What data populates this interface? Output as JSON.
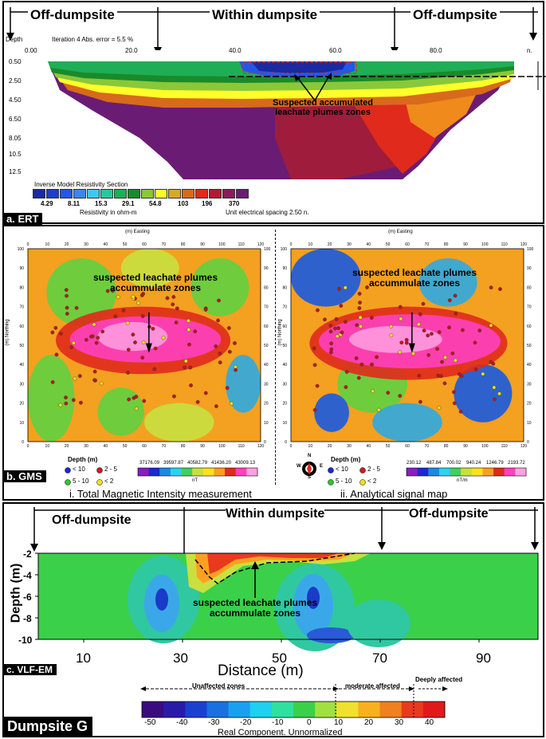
{
  "ert": {
    "zones": [
      "Off-dumpsite",
      "Within dumpsite",
      "Off-dumpsite"
    ],
    "depth_label": "Depth",
    "iteration_label": "Iteration 4  Abs. error = 5.5 %",
    "x_ticks": [
      "0.00",
      "20.0",
      "40.0",
      "60.0",
      "80.0"
    ],
    "x_end": "n.",
    "depth_ticks": [
      "0.50",
      "2.50",
      "4.50",
      "6.50",
      "8.05",
      "10.5",
      "12.5"
    ],
    "annotation": [
      "Suspected accumulated",
      "leachate plumes zones"
    ],
    "legend_title": "Inverse Model Resistivity Section",
    "legend_values": [
      "4.29",
      "8.11",
      "15.3",
      "29.1",
      "54.8",
      "103",
      "196",
      "370"
    ],
    "legend_unit": "Resistivity in ohm-m",
    "spacing": "Unit electrical spacing 2.50 n.",
    "legend_colors": [
      "#1a2aa0",
      "#1b3fcc",
      "#2456e8",
      "#3a86f0",
      "#3fc8f0",
      "#28c89c",
      "#1fae55",
      "#1a8a2a",
      "#8ac83a",
      "#ffff2a",
      "#d8a82a",
      "#d86a1c",
      "#e02a1c",
      "#b01c30",
      "#8a1c5a",
      "#6a1c74"
    ],
    "label": "a. ERT"
  },
  "gms": {
    "label": "b. GMS",
    "map1": {
      "title_axis": "(m) Easting",
      "y_axis": "(m) Northing",
      "annotation": [
        "suspected leachate plumes",
        "accummulate zones"
      ],
      "caption": "i. Total Magnetic Intensity measurement",
      "unit": "nT",
      "scale_values": [
        "37176.09",
        "39597.87",
        "40582.79",
        "41436.20",
        "43009.13"
      ]
    },
    "map2": {
      "title_axis": "(m) Easting",
      "y_axis": "(m) Northing",
      "annotation": [
        "suspected leachate plumes",
        "accummulate zones"
      ],
      "caption": "ii. Analytical signal map",
      "unit": "nT/m",
      "scale_values": [
        "230.12",
        "487.84",
        "700.02",
        "940.24",
        "1246.79",
        "2193.72"
      ]
    },
    "x_ticks": [
      "0",
      "10",
      "20",
      "30",
      "40",
      "50",
      "60",
      "70",
      "80",
      "90",
      "100",
      "110",
      "120"
    ],
    "y_ticks": [
      "100",
      "90",
      "80",
      "70",
      "60",
      "50",
      "40",
      "30",
      "20",
      "10",
      "0"
    ],
    "depth_title": "Depth (m)",
    "depth_items": [
      "< 10",
      "2 - 5",
      "5 - 10",
      "< 2"
    ],
    "depth_colors": [
      "#1a2ad0",
      "#d01a1a",
      "#2ac82a",
      "#f0e01a"
    ],
    "compass": [
      "N",
      "S",
      "W",
      "E"
    ]
  },
  "vlf": {
    "zones": [
      "Off-dumpsite",
      "Within dumpsite",
      "Off-dumpsite"
    ],
    "y_label": "Depth (m)",
    "y_ticks": [
      "-2",
      "-4",
      "-6",
      "-8",
      "-10"
    ],
    "x_ticks": [
      "10",
      "30",
      "50",
      "70",
      "90"
    ],
    "x_label": "Distance (m)",
    "annotation": [
      "suspected leachate plumes",
      "accummulate zones"
    ],
    "label": "c. VLF-EM",
    "scale_zones": [
      "Unaffected zones",
      "moderate affected",
      "Deeply affected"
    ],
    "scale_ticks": [
      "-50",
      "-40",
      "-30",
      "-20",
      "-10",
      "0",
      "10",
      "20",
      "30",
      "40"
    ],
    "scale_title": "Real Component. Unnormalized"
  },
  "footer": "Dumpsite G"
}
